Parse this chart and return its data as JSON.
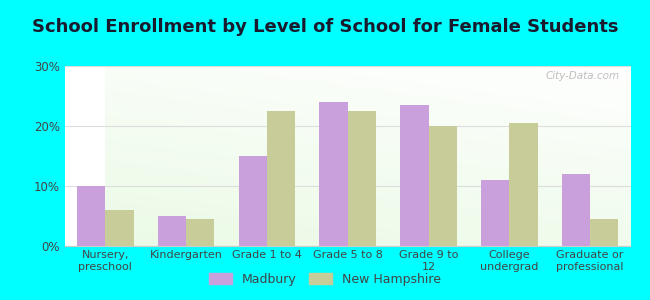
{
  "title": "School Enrollment by Level of School for Female Students",
  "categories": [
    "Nursery,\npreschool",
    "Kindergarten",
    "Grade 1 to 4",
    "Grade 5 to 8",
    "Grade 9 to\n12",
    "College\nundergrad",
    "Graduate or\nprofessional"
  ],
  "madbury": [
    10,
    5,
    15,
    24,
    23.5,
    11,
    12
  ],
  "new_hampshire": [
    6,
    4.5,
    22.5,
    22.5,
    20,
    20.5,
    4.5
  ],
  "madbury_color": "#c9a0dc",
  "nh_color": "#c8cc99",
  "ylim": [
    0,
    30
  ],
  "yticks": [
    0,
    10,
    20,
    30
  ],
  "ytick_labels": [
    "0%",
    "10%",
    "20%",
    "30%"
  ],
  "background_color": "#00ffff",
  "bar_width": 0.35,
  "legend_madbury": "Madbury",
  "legend_nh": "New Hampshire",
  "watermark": "City-Data.com",
  "title_fontsize": 13,
  "axis_label_fontsize": 8,
  "tick_fontsize": 8.5,
  "grid_color": "#dddddd"
}
